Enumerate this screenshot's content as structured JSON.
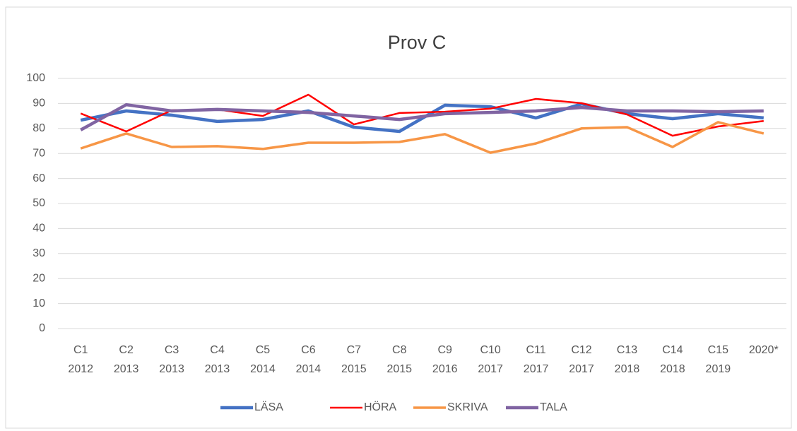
{
  "chart_data": {
    "type": "line",
    "title": "Prov C",
    "categories": [
      "C1 2012",
      "C2 2013",
      "C3 2013",
      "C4 2013",
      "C5 2014",
      "C6 2014",
      "C7 2015",
      "C8 2015",
      "C9 2016",
      "C10 2017",
      "C11 2017",
      "C12 2017",
      "C13 2018",
      "C14 2018",
      "C15 2019",
      "2020*"
    ],
    "series": [
      {
        "name": "LÄSA",
        "color": "#4472c4",
        "values": [
          83.3,
          87,
          85.3,
          82.8,
          83.6,
          87,
          80.5,
          78.8,
          89.3,
          88.7,
          84.2,
          89.8,
          85.9,
          83.9,
          85.9,
          84.2
        ]
      },
      {
        "name": "HÖRA",
        "color": "#ff0000",
        "values": [
          86,
          78.8,
          87.3,
          87.6,
          85,
          93.5,
          81.6,
          86.2,
          86.7,
          87.9,
          91.8,
          90.1,
          85.6,
          77.1,
          80.8,
          83
        ]
      },
      {
        "name": "SKRIVA",
        "color": "#f79646",
        "values": [
          72,
          78,
          72.6,
          72.9,
          71.8,
          74.3,
          74.3,
          74.6,
          77.7,
          70.3,
          74,
          80,
          80.5,
          72.6,
          82.5,
          78
        ]
      },
      {
        "name": "TALA",
        "color": "#8064a2",
        "values": [
          79.4,
          89.5,
          87,
          87.6,
          87,
          86.4,
          85,
          83.6,
          85.9,
          86.4,
          87,
          88.4,
          87,
          87,
          86.7,
          87
        ]
      }
    ],
    "ylim": [
      0,
      100
    ],
    "yticks": [
      0,
      10,
      20,
      30,
      40,
      50,
      60,
      70,
      80,
      90,
      100
    ],
    "grid": true,
    "legend": "bottom"
  }
}
